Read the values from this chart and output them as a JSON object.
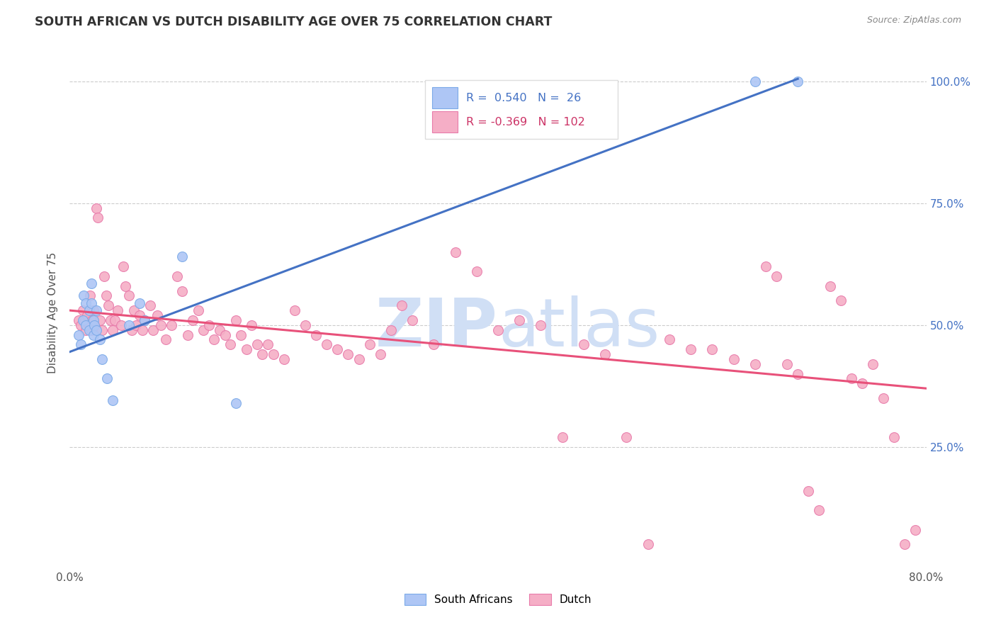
{
  "title": "SOUTH AFRICAN VS DUTCH DISABILITY AGE OVER 75 CORRELATION CHART",
  "source": "Source: ZipAtlas.com",
  "ylabel": "Disability Age Over 75",
  "xlim": [
    0.0,
    0.8
  ],
  "ylim": [
    0.0,
    1.05
  ],
  "ytick_vals": [
    0.25,
    0.5,
    0.75,
    1.0
  ],
  "ytick_labels_right": [
    "25.0%",
    "50.0%",
    "75.0%",
    "100.0%"
  ],
  "legend_R_sa": "0.540",
  "legend_N_sa": "26",
  "legend_R_dutch": "-0.369",
  "legend_N_dutch": "102",
  "sa_fill": "#aec6f5",
  "sa_edge": "#7baae8",
  "dutch_fill": "#f5aec6",
  "dutch_edge": "#e87baa",
  "trend_sa_color": "#4472c4",
  "trend_dutch_color": "#e8517a",
  "background_color": "#ffffff",
  "grid_color": "#cccccc",
  "watermark_color": "#d0dff5",
  "sa_x": [
    0.008,
    0.01,
    0.012,
    0.013,
    0.015,
    0.015,
    0.018,
    0.018,
    0.02,
    0.02,
    0.022,
    0.022,
    0.023,
    0.025,
    0.025,
    0.028,
    0.03,
    0.035,
    0.04,
    0.055,
    0.065,
    0.07,
    0.105,
    0.155,
    0.64,
    0.68
  ],
  "sa_y": [
    0.48,
    0.46,
    0.51,
    0.56,
    0.545,
    0.5,
    0.53,
    0.49,
    0.585,
    0.545,
    0.51,
    0.48,
    0.5,
    0.53,
    0.49,
    0.47,
    0.43,
    0.39,
    0.345,
    0.5,
    0.545,
    0.51,
    0.64,
    0.34,
    1.0,
    1.0
  ],
  "dutch_x": [
    0.008,
    0.01,
    0.012,
    0.014,
    0.015,
    0.016,
    0.018,
    0.019,
    0.02,
    0.021,
    0.022,
    0.023,
    0.025,
    0.026,
    0.028,
    0.03,
    0.032,
    0.034,
    0.036,
    0.038,
    0.04,
    0.042,
    0.045,
    0.048,
    0.05,
    0.052,
    0.055,
    0.058,
    0.06,
    0.062,
    0.065,
    0.068,
    0.07,
    0.075,
    0.078,
    0.082,
    0.085,
    0.09,
    0.095,
    0.1,
    0.105,
    0.11,
    0.115,
    0.12,
    0.125,
    0.13,
    0.135,
    0.14,
    0.145,
    0.15,
    0.155,
    0.16,
    0.165,
    0.17,
    0.175,
    0.18,
    0.185,
    0.19,
    0.2,
    0.21,
    0.22,
    0.23,
    0.24,
    0.25,
    0.26,
    0.27,
    0.28,
    0.29,
    0.3,
    0.31,
    0.32,
    0.34,
    0.36,
    0.38,
    0.4,
    0.42,
    0.44,
    0.46,
    0.48,
    0.5,
    0.52,
    0.54,
    0.56,
    0.58,
    0.6,
    0.62,
    0.64,
    0.65,
    0.66,
    0.67,
    0.68,
    0.69,
    0.7,
    0.71,
    0.72,
    0.73,
    0.74,
    0.75,
    0.76,
    0.77,
    0.78,
    0.79
  ],
  "dutch_y": [
    0.51,
    0.5,
    0.53,
    0.51,
    0.49,
    0.52,
    0.5,
    0.56,
    0.49,
    0.51,
    0.53,
    0.5,
    0.74,
    0.72,
    0.51,
    0.49,
    0.6,
    0.56,
    0.54,
    0.51,
    0.49,
    0.51,
    0.53,
    0.5,
    0.62,
    0.58,
    0.56,
    0.49,
    0.53,
    0.5,
    0.52,
    0.49,
    0.51,
    0.54,
    0.49,
    0.52,
    0.5,
    0.47,
    0.5,
    0.6,
    0.57,
    0.48,
    0.51,
    0.53,
    0.49,
    0.5,
    0.47,
    0.49,
    0.48,
    0.46,
    0.51,
    0.48,
    0.45,
    0.5,
    0.46,
    0.44,
    0.46,
    0.44,
    0.43,
    0.53,
    0.5,
    0.48,
    0.46,
    0.45,
    0.44,
    0.43,
    0.46,
    0.44,
    0.49,
    0.54,
    0.51,
    0.46,
    0.65,
    0.61,
    0.49,
    0.51,
    0.5,
    0.27,
    0.46,
    0.44,
    0.27,
    0.05,
    0.47,
    0.45,
    0.45,
    0.43,
    0.42,
    0.62,
    0.6,
    0.42,
    0.4,
    0.16,
    0.12,
    0.58,
    0.55,
    0.39,
    0.38,
    0.42,
    0.35,
    0.27,
    0.05,
    0.08
  ],
  "sa_trend_x0": 0.0,
  "sa_trend_y0": 0.445,
  "sa_trend_x1": 0.68,
  "sa_trend_y1": 1.005,
  "dutch_trend_x0": 0.0,
  "dutch_trend_y0": 0.53,
  "dutch_trend_x1": 0.8,
  "dutch_trend_y1": 0.37
}
